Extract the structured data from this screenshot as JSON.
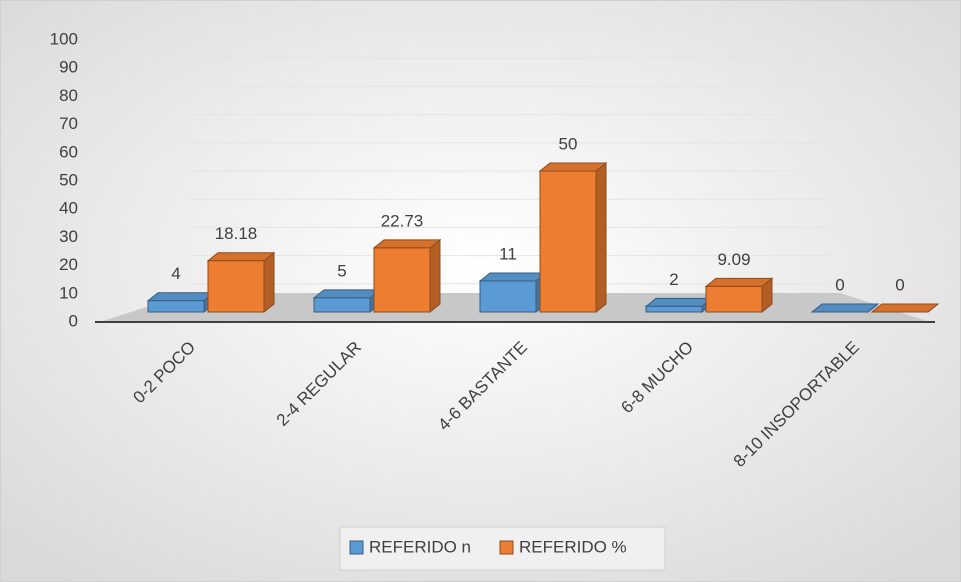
{
  "chart_data": {
    "type": "bar3d",
    "categories": [
      "0-2 POCO",
      "2-4 REGULAR",
      "4-6 BASTANTE",
      "6-8 MUCHO",
      "8-10 INSOPORTABLE"
    ],
    "series": [
      {
        "name": "REFERIDO n",
        "color": "#5b9bd5",
        "values": [
          4,
          5,
          11,
          2,
          0
        ]
      },
      {
        "name": "REFERIDO %",
        "color": "#ed7d31",
        "values": [
          18.18,
          22.73,
          50,
          9.09,
          0
        ]
      }
    ],
    "ylim": [
      0,
      100
    ],
    "yticks": [
      0,
      10,
      20,
      30,
      40,
      50,
      60,
      70,
      80,
      90,
      100
    ],
    "grid": true,
    "legend": "bottom"
  }
}
